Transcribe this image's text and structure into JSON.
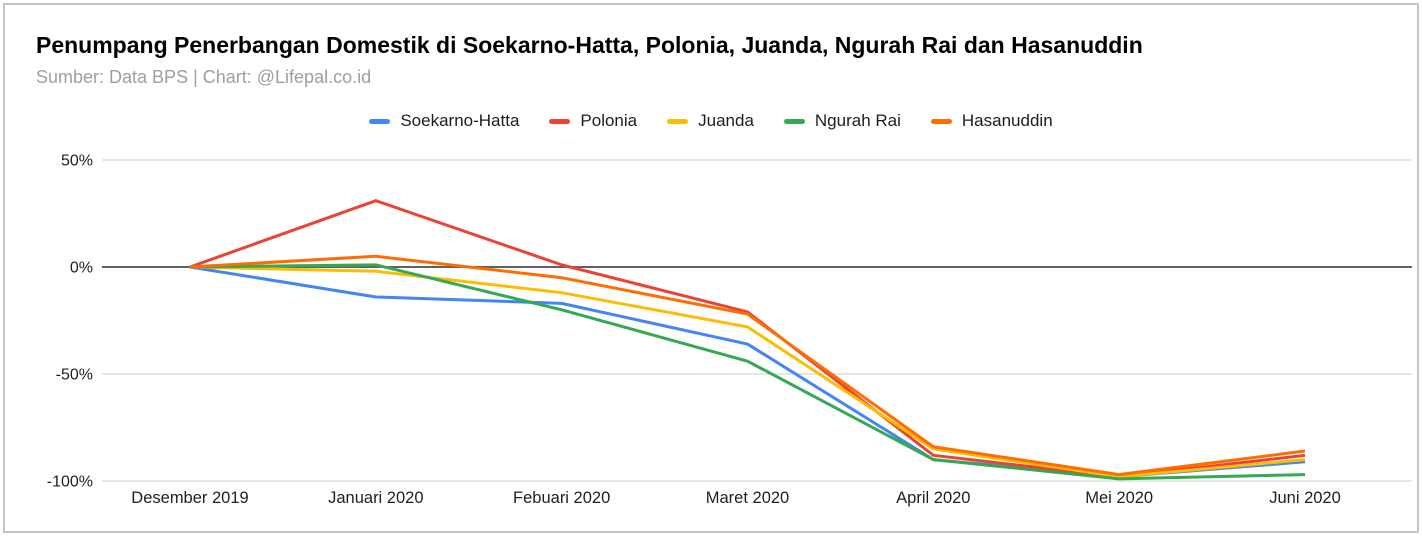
{
  "chart_data": {
    "type": "line",
    "title": "Penumpang Penerbangan Domestik di Soekarno-Hatta, Polonia, Juanda, Ngurah Rai dan Hasanuddin",
    "subtitle": "Sumber: Data BPS | Chart: @Lifepal.co.id",
    "categories": [
      "Desember 2019",
      "Januari 2020",
      "Febuari 2020",
      "Maret 2020",
      "April 2020",
      "Mei 2020",
      "Juni 2020"
    ],
    "series": [
      {
        "name": "Soekarno-Hatta",
        "color": "#4285F4",
        "values": [
          0,
          -14,
          -17,
          -36,
          -90,
          -98,
          -91
        ]
      },
      {
        "name": "Polonia",
        "color": "#EA4335",
        "values": [
          0,
          31,
          1,
          -21,
          -88,
          -98,
          -88
        ]
      },
      {
        "name": "Juanda",
        "color": "#FBBC04",
        "values": [
          0,
          -2,
          -12,
          -28,
          -85,
          -98,
          -90
        ]
      },
      {
        "name": "Ngurah Rai",
        "color": "#34A853",
        "values": [
          0,
          1,
          -20,
          -44,
          -90,
          -99,
          -97
        ]
      },
      {
        "name": "Hasanuddin",
        "color": "#FF6D01",
        "values": [
          0,
          5,
          -5,
          -22,
          -84,
          -97,
          -86
        ]
      }
    ],
    "yticks": [
      {
        "label": "50%",
        "value": 50
      },
      {
        "label": "0%",
        "value": 0
      },
      {
        "label": "-50%",
        "value": -50
      },
      {
        "label": "-100%",
        "value": -100
      }
    ],
    "ylim": [
      -100,
      50
    ],
    "unit": "%",
    "grid": "horizontal",
    "legend_position": "top"
  },
  "colors": {
    "grid_line": "#e6e6e6",
    "zero_line": "#616161",
    "axis_text": "#1f1f1f",
    "title_text": "#000000",
    "subtitle_text": "#9e9e9e",
    "card_border": "#c4c4c4"
  }
}
